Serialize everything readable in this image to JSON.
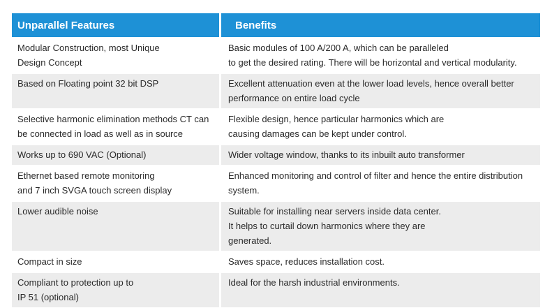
{
  "header": {
    "col1": "Unparallel Features",
    "col2": "Benefits"
  },
  "rows": [
    {
      "feature": [
        "Modular Construction, most Unique",
        "Design Concept"
      ],
      "benefit": [
        "Basic modules of 100 A/200 A, which can be paralleled",
        "to get the desired rating. There will be horizontal and vertical modularity."
      ]
    },
    {
      "feature": [
        "Based on Floating point 32 bit DSP"
      ],
      "benefit": [
        "Excellent attenuation even at the lower load levels, hence overall better",
        "performance on entire load cycle"
      ]
    },
    {
      "feature": [
        "Selective harmonic elimination methods CT can",
        "be connected in load as well as in source"
      ],
      "benefit": [
        "Flexible design, hence particular harmonics which are",
        "causing damages can be kept under control."
      ]
    },
    {
      "feature": [
        "Works up to 690 VAC (Optional)"
      ],
      "benefit": [
        "Wider voltage window, thanks to its inbuilt auto transformer"
      ]
    },
    {
      "feature": [
        "Ethernet based remote monitoring",
        "and 7 inch SVGA touch screen display"
      ],
      "benefit": [
        "Enhanced monitoring and control of filter and hence the entire distribution",
        "system."
      ]
    },
    {
      "feature": [
        "Lower audible noise"
      ],
      "benefit": [
        "Suitable for installing near servers inside data center.",
        "It helps to curtail down harmonics where they are",
        "generated."
      ]
    },
    {
      "feature": [
        "Compact in size"
      ],
      "benefit": [
        "Saves space, reduces installation cost."
      ]
    },
    {
      "feature": [
        "Compliant to protection up to",
        "IP 51 (optional)"
      ],
      "benefit": [
        "Ideal for the harsh industrial environments."
      ]
    }
  ]
}
